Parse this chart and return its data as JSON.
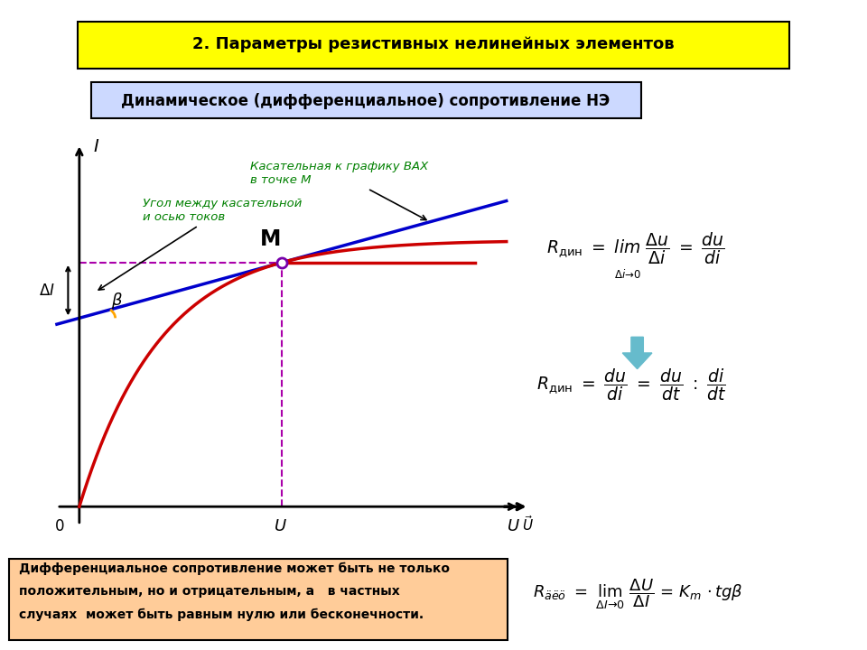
{
  "title": "2. Параметры резистивных нелинейных элементов",
  "subtitle": "Динамическое (дифференциальное) сопротивление НЭ",
  "annotation1_line1": "Угол между касательной",
  "annotation1_line2": "и осью токов",
  "annotation2_line1": "Касательная к графику ВАХ",
  "annotation2_line2": "в точке М",
  "bottom_text_line1": "Дифференциальное сопротивление может быть не только",
  "bottom_text_line2": "положительным, но и отрицательным, а   в частных",
  "bottom_text_line3": "случаях  может быть равным нулю или бесконечности.",
  "bg_color": "#ffffff",
  "title_bg": "#ffff00",
  "subtitle_bg": "#ccd9ff",
  "bottom_bg": "#ffcc99",
  "annotation_color": "#008000",
  "curve_color": "#cc0000",
  "tangent_color": "#0000cc",
  "dashed_color": "#aa00aa",
  "arrow_color": "#66bbcc"
}
